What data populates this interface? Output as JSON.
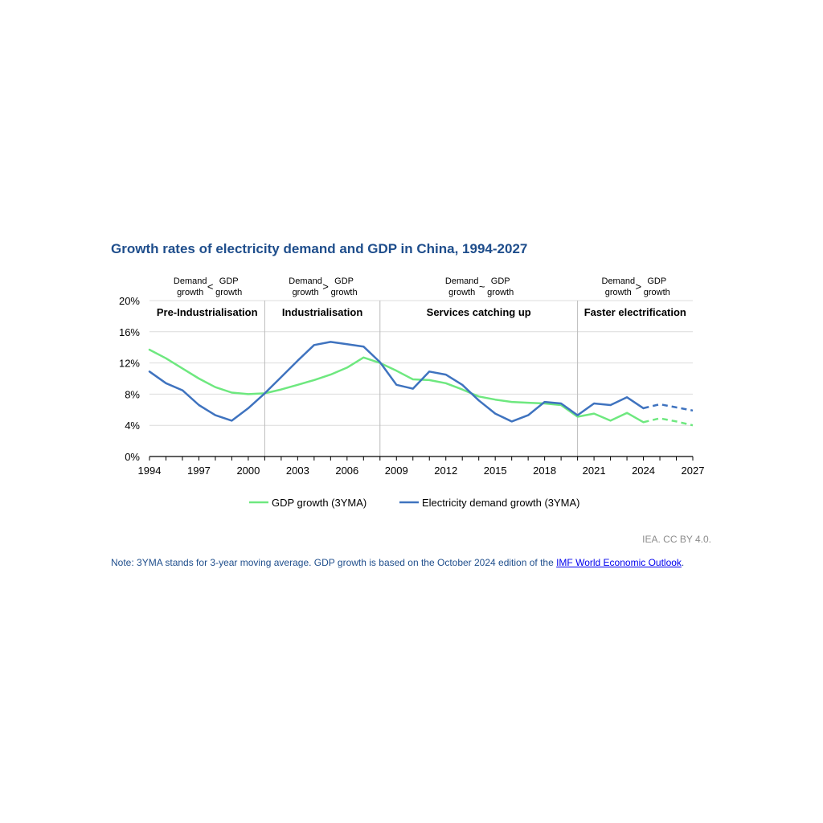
{
  "title": "Growth rates of electricity demand and GDP in China, 1994-2027",
  "source": "IEA. CC BY 4.0.",
  "note": {
    "text": "Note: 3YMA stands for 3-year moving average. GDP growth is based on the October 2024 edition of the ",
    "link_text": "IMF World Economic Outlook",
    "end": "."
  },
  "colors": {
    "gdp": "#6ee87f",
    "electricity": "#3f73bf",
    "axis": "#000000",
    "grid": "#dcdcdc",
    "divider": "#bbbbbb",
    "title": "#1f4e8c"
  },
  "chart_data": {
    "type": "line",
    "title": "Growth rates of electricity demand and GDP in China, 1994-2027",
    "xlabel": "",
    "ylabel": "",
    "xlim": [
      1994,
      2027
    ],
    "ylim": [
      0,
      20
    ],
    "grid": true,
    "legend_position": "bottom",
    "x_ticks": [
      1994,
      1997,
      2000,
      2003,
      2006,
      2009,
      2012,
      2015,
      2018,
      2021,
      2024,
      2027
    ],
    "y_ticks": [
      {
        "value": 0,
        "label": "0%"
      },
      {
        "value": 4,
        "label": "4%"
      },
      {
        "value": 8,
        "label": "8%"
      },
      {
        "value": 12,
        "label": "12%"
      },
      {
        "value": 16,
        "label": "16%"
      },
      {
        "value": 20,
        "label": "20%"
      }
    ],
    "forecast_start": 2024,
    "series": [
      {
        "name": "GDP growth (3YMA)",
        "color": "#6ee87f",
        "x": [
          1994,
          1995,
          1996,
          1997,
          1998,
          1999,
          2000,
          2001,
          2002,
          2003,
          2004,
          2005,
          2006,
          2007,
          2008,
          2009,
          2010,
          2011,
          2012,
          2013,
          2014,
          2015,
          2016,
          2017,
          2018,
          2019,
          2020,
          2021,
          2022,
          2023,
          2024,
          2025,
          2026,
          2027
        ],
        "values": [
          13.7,
          12.6,
          11.3,
          10.0,
          8.9,
          8.2,
          8.0,
          8.1,
          8.6,
          9.2,
          9.8,
          10.5,
          11.4,
          12.7,
          12.0,
          11.0,
          9.9,
          9.8,
          9.4,
          8.6,
          7.7,
          7.3,
          7.0,
          6.9,
          6.8,
          6.6,
          5.1,
          5.5,
          4.6,
          5.6,
          4.4,
          4.9,
          4.5,
          4.0
        ]
      },
      {
        "name": "Electricity demand growth (3YMA)",
        "color": "#3f73bf",
        "x": [
          1994,
          1995,
          1996,
          1997,
          1998,
          1999,
          2000,
          2001,
          2002,
          2003,
          2004,
          2005,
          2006,
          2007,
          2008,
          2009,
          2010,
          2011,
          2012,
          2013,
          2014,
          2015,
          2016,
          2017,
          2018,
          2019,
          2020,
          2021,
          2022,
          2023,
          2024,
          2025,
          2026,
          2027
        ],
        "values": [
          10.9,
          9.4,
          8.5,
          6.6,
          5.3,
          4.6,
          6.2,
          8.1,
          10.2,
          12.3,
          14.3,
          14.7,
          14.4,
          14.1,
          12.1,
          9.2,
          8.7,
          10.9,
          10.5,
          9.2,
          7.2,
          5.5,
          4.5,
          5.3,
          7.0,
          6.8,
          5.3,
          6.8,
          6.6,
          7.6,
          6.2,
          6.7,
          6.3,
          5.9
        ]
      }
    ],
    "phases": [
      {
        "label": "Pre-Industrialisation",
        "start": 1994,
        "end": 2001,
        "left": "Demand growth",
        "op": "<",
        "right": "GDP growth"
      },
      {
        "label": "Industrialisation",
        "start": 2001,
        "end": 2008,
        "left": "Demand growth",
        "op": ">",
        "right": "GDP growth"
      },
      {
        "label": "Services catching up",
        "start": 2008,
        "end": 2020,
        "left": "Demand growth",
        "op": "~",
        "right": "GDP growth"
      },
      {
        "label": "Faster electrification",
        "start": 2020,
        "end": 2027,
        "left": "Demand growth",
        "op": ">",
        "right": "GDP growth"
      }
    ]
  }
}
